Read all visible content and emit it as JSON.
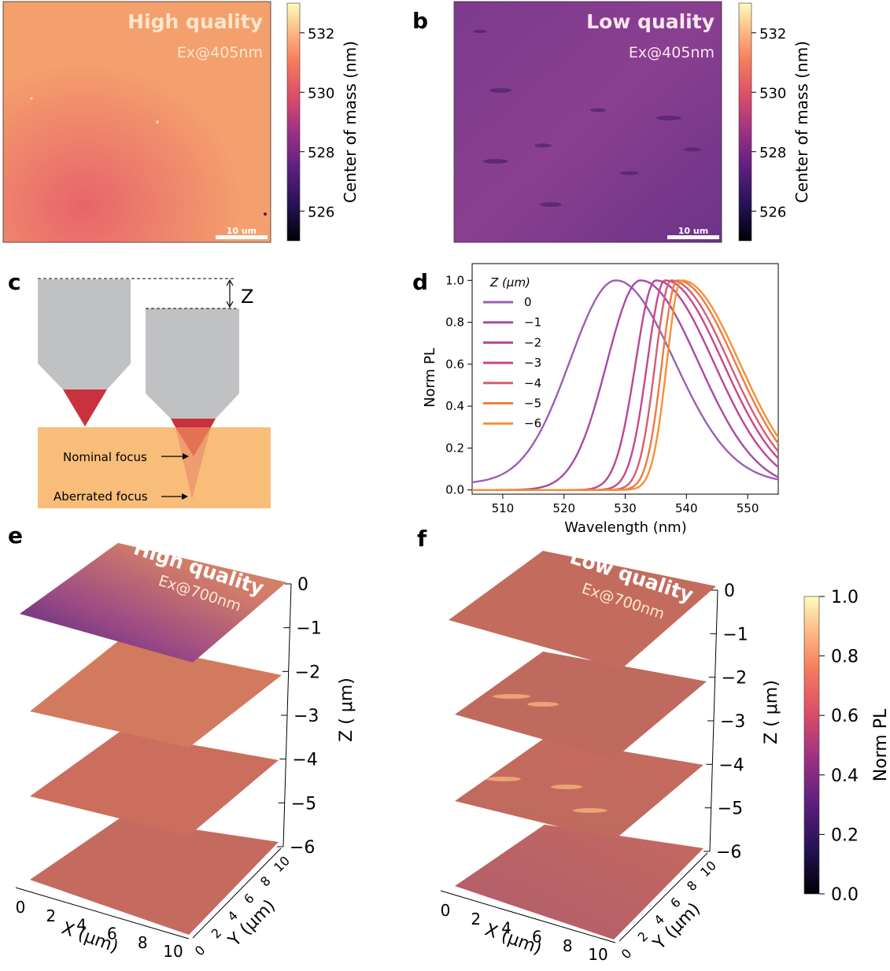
{
  "panels": {
    "a": {
      "letter": "a",
      "title": "High quality",
      "excitation": "Ex@405nm",
      "scalebar": "10 um",
      "colorbar_label": "Center of mass (nm)",
      "colorbar_ticks": [
        "532",
        "530",
        "528",
        "526"
      ],
      "colorbar_range": [
        525,
        533
      ],
      "map_base_color": "#f4a06c"
    },
    "b": {
      "letter": "b",
      "title": "Low quality",
      "excitation": "Ex@405nm",
      "scalebar": "10 um",
      "colorbar_label": "Center of mass (nm)",
      "colorbar_ticks": [
        "532",
        "530",
        "528",
        "526"
      ],
      "colorbar_range": [
        525,
        533
      ],
      "map_base_color": "#7a3a8c"
    },
    "c": {
      "letter": "c",
      "z_label": "Z",
      "nominal_focus": "Nominal focus",
      "aberrated_focus": "Aberrated focus",
      "objective_color": "#c0c1c3",
      "cone_color": "#c8323e",
      "sample_color": "#f9bd7a"
    },
    "d": {
      "letter": "d",
      "legend_title": "Z (μm)",
      "chart_data": {
        "type": "line",
        "xlabel": "Wavelength (nm)",
        "ylabel": "Norm PL",
        "xlim": [
          505,
          555
        ],
        "ylim": [
          -0.02,
          1.08
        ],
        "xticks": [
          "510",
          "520",
          "530",
          "540",
          "550"
        ],
        "xtick_values": [
          510,
          520,
          530,
          540,
          550
        ],
        "yticks": [
          "0.0",
          "0.2",
          "0.4",
          "0.6",
          "0.8",
          "1.0"
        ],
        "ytick_values": [
          0,
          0.2,
          0.4,
          0.6,
          0.8,
          1.0
        ],
        "series": [
          {
            "name": "0",
            "color": "#9b5fb5",
            "peak": 528.5,
            "left_width": 7.5,
            "right_width": 9.5,
            "baseline": 0.03
          },
          {
            "name": "−1",
            "color": "#a84aa6",
            "peak": 532.5,
            "left_width": 5.5,
            "right_width": 9.5,
            "baseline": 0.0
          },
          {
            "name": "−2",
            "color": "#bb4596",
            "peak": 535.0,
            "left_width": 3.3,
            "right_width": 9.5,
            "baseline": 0.0
          },
          {
            "name": "−3",
            "color": "#c7488a",
            "peak": 536.5,
            "left_width": 2.9,
            "right_width": 9.5,
            "baseline": 0.0
          },
          {
            "name": "−4",
            "color": "#d65e70",
            "peak": 537.5,
            "left_width": 2.6,
            "right_width": 9.5,
            "baseline": 0.0
          },
          {
            "name": "−5",
            "color": "#ec7a48",
            "peak": 538.5,
            "left_width": 2.5,
            "right_width": 9.5,
            "baseline": 0.0
          },
          {
            "name": "−6",
            "color": "#f59232",
            "peak": 539.2,
            "left_width": 2.4,
            "right_width": 9.5,
            "baseline": 0.0
          }
        ]
      }
    },
    "e": {
      "letter": "e",
      "title": "High quality",
      "excitation": "Ex@700nm",
      "z_axis_label": "Z ( μm)",
      "x_axis_label": "X (μm)",
      "y_axis_label": "Y (μm)",
      "z_ticks": [
        "0",
        "−1",
        "−2",
        "−3",
        "−4",
        "−5",
        "−6"
      ],
      "x_ticks": [
        "0",
        "2",
        "4",
        "6",
        "8",
        "10"
      ],
      "y_ticks": [
        "0",
        "2",
        "4",
        "6",
        "8",
        "10"
      ]
    },
    "f": {
      "letter": "f",
      "title": "Low quality",
      "excitation": "Ex@700nm",
      "z_axis_label": "Z ( μm)",
      "x_axis_label": "X (μm)",
      "y_axis_label": "Y (μm)",
      "z_ticks": [
        "0",
        "−1",
        "−2",
        "−3",
        "−4",
        "−5",
        "−6"
      ],
      "x_ticks": [
        "0",
        "2",
        "4",
        "6",
        "8",
        "10"
      ],
      "y_ticks": [
        "0",
        "2",
        "4",
        "6",
        "8",
        "10"
      ]
    },
    "colorbar_pl": {
      "label": "Norm PL",
      "ticks": [
        "1.0",
        "0.8",
        "0.6",
        "0.4",
        "0.2",
        "0.0"
      ],
      "range": [
        0,
        1
      ]
    }
  }
}
